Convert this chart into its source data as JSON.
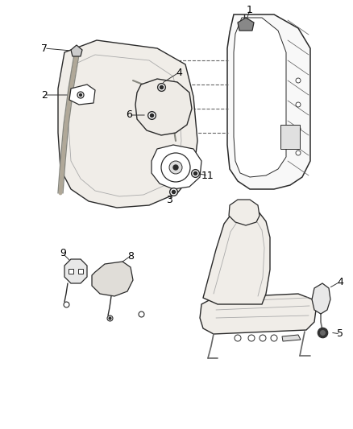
{
  "background_color": "#ffffff",
  "line_color": "#2a2a2a",
  "figsize": [
    4.38,
    5.33
  ],
  "dpi": 100
}
